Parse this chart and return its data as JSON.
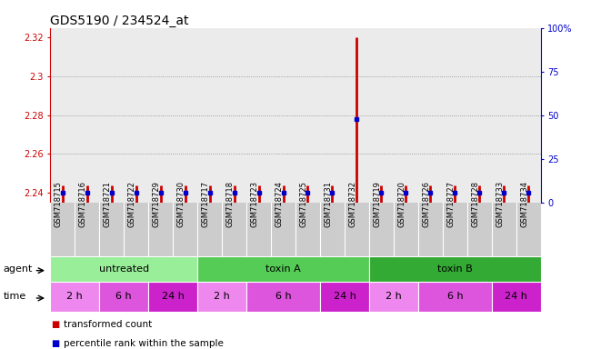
{
  "title": "GDS5190 / 234524_at",
  "samples": [
    "GSM718715",
    "GSM718716",
    "GSM718721",
    "GSM718722",
    "GSM718729",
    "GSM718730",
    "GSM718717",
    "GSM718718",
    "GSM718723",
    "GSM718724",
    "GSM718725",
    "GSM718731",
    "GSM718732",
    "GSM718719",
    "GSM718720",
    "GSM718726",
    "GSM718727",
    "GSM718728",
    "GSM718733",
    "GSM718734"
  ],
  "red_values": [
    2.244,
    2.244,
    2.244,
    2.244,
    2.244,
    2.244,
    2.244,
    2.244,
    2.244,
    2.244,
    2.244,
    2.244,
    2.32,
    2.244,
    2.244,
    2.244,
    2.244,
    2.244,
    2.244,
    2.244
  ],
  "blue_values": [
    2.24,
    2.24,
    2.24,
    2.24,
    2.24,
    2.24,
    2.24,
    2.24,
    2.24,
    2.24,
    2.24,
    2.24,
    2.278,
    2.24,
    2.24,
    2.24,
    2.24,
    2.24,
    2.24,
    2.24
  ],
  "ylim_left": [
    2.235,
    2.325
  ],
  "ylim_right": [
    0,
    100
  ],
  "yticks_left": [
    2.24,
    2.26,
    2.28,
    2.3,
    2.32
  ],
  "yticks_right": [
    0,
    25,
    50,
    75,
    100
  ],
  "ytick_labels_right": [
    "0",
    "25",
    "50",
    "75",
    "100%"
  ],
  "agent_groups": [
    {
      "label": "untreated",
      "start": 0,
      "end": 6,
      "color": "#99EE99"
    },
    {
      "label": "toxin A",
      "start": 6,
      "end": 13,
      "color": "#55CC55"
    },
    {
      "label": "toxin B",
      "start": 13,
      "end": 20,
      "color": "#33AA33"
    }
  ],
  "time_groups": [
    {
      "label": "2 h",
      "start": 0,
      "end": 2,
      "color": "#EE88EE"
    },
    {
      "label": "6 h",
      "start": 2,
      "end": 4,
      "color": "#DD55DD"
    },
    {
      "label": "24 h",
      "start": 4,
      "end": 6,
      "color": "#CC22CC"
    },
    {
      "label": "2 h",
      "start": 6,
      "end": 8,
      "color": "#EE88EE"
    },
    {
      "label": "6 h",
      "start": 8,
      "end": 11,
      "color": "#DD55DD"
    },
    {
      "label": "24 h",
      "start": 11,
      "end": 13,
      "color": "#CC22CC"
    },
    {
      "label": "2 h",
      "start": 13,
      "end": 15,
      "color": "#EE88EE"
    },
    {
      "label": "6 h",
      "start": 15,
      "end": 18,
      "color": "#DD55DD"
    },
    {
      "label": "24 h",
      "start": 18,
      "end": 20,
      "color": "#CC22CC"
    }
  ],
  "bg_color": "#ffffff",
  "plot_bg": "#ebebeb",
  "red_color": "#cc0000",
  "blue_color": "#0000cc",
  "title_fontsize": 10,
  "tick_fontsize": 7,
  "legend_fontsize": 7.5,
  "sample_fontsize": 6,
  "label_fontsize": 8,
  "group_fontsize": 8
}
